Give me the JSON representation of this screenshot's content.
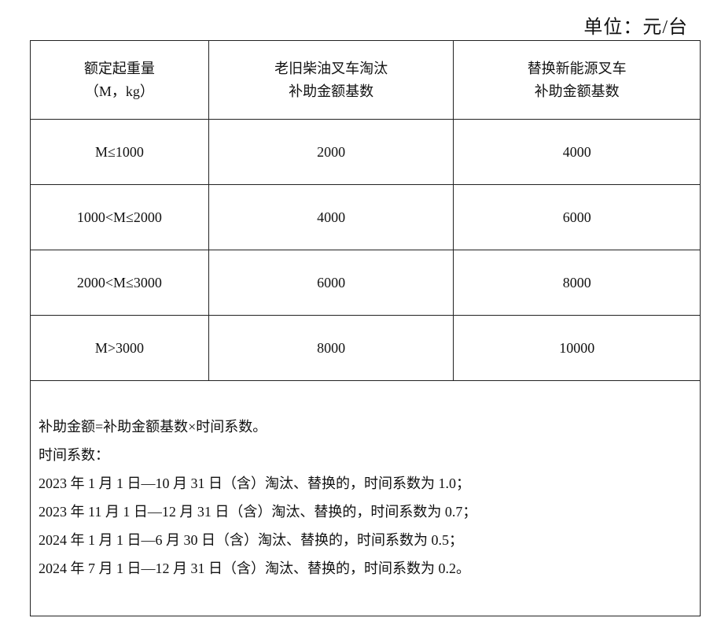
{
  "unit_label": "单位：元/台",
  "headers": [
    {
      "line1": "额定起重量",
      "line2": "（M，kg）"
    },
    {
      "line1": "老旧柴油叉车淘汰",
      "line2": "补助金额基数"
    },
    {
      "line1": "替换新能源叉车",
      "line2": "补助金额基数"
    }
  ],
  "rows": [
    {
      "capacity": "M≤1000",
      "retire": "2000",
      "replace": "4000"
    },
    {
      "capacity": "1000<M≤2000",
      "retire": "4000",
      "replace": "6000"
    },
    {
      "capacity": "2000<M≤3000",
      "retire": "6000",
      "replace": "8000"
    },
    {
      "capacity": "M>3000",
      "retire": "8000",
      "replace": "10000"
    }
  ],
  "notes": [
    "补助金额=补助金额基数×时间系数。",
    "时间系数：",
    "2023 年 1 月 1 日—10 月 31 日（含）淘汰、替换的，时间系数为 1.0；",
    "2023 年 11 月 1 日—12 月 31 日（含）淘汰、替换的，时间系数为 0.7；",
    "2024 年 1 月 1 日—6 月 30 日（含）淘汰、替换的，时间系数为 0.5；",
    "2024 年 7 月 1 日—12 月 31 日（含）淘汰、替换的，时间系数为 0.2。"
  ]
}
